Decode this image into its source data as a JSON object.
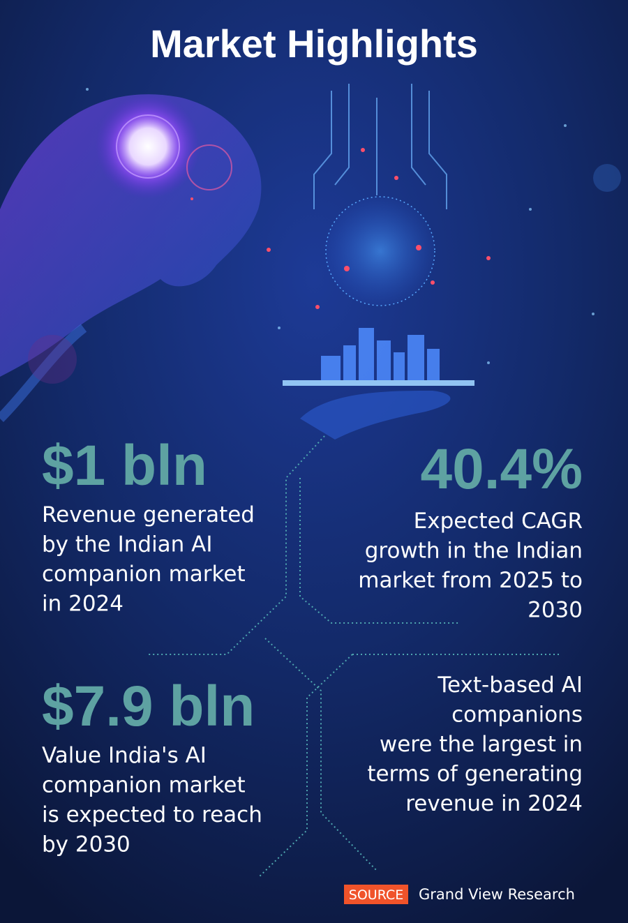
{
  "title": "Market Highlights",
  "highlights": [
    {
      "value": "$1 bln",
      "lines": [
        "Revenue generated",
        "by the Indian AI",
        "companion market",
        "in 2024"
      ]
    },
    {
      "value": "40.4%",
      "lines": [
        "Expected CAGR",
        "growth in the Indian",
        "market from 2025 to",
        "2030"
      ]
    },
    {
      "value": "$7.9 bln",
      "lines": [
        "Value India's AI",
        "companion market",
        "is expected to reach",
        "by 2030"
      ]
    },
    {
      "lines": [
        "Text-based AI",
        "companions",
        "were the largest in",
        "terms of generating",
        "revenue in 2024"
      ]
    }
  ],
  "source": {
    "label": "SOURCE",
    "name": "Grand View Research"
  }
}
